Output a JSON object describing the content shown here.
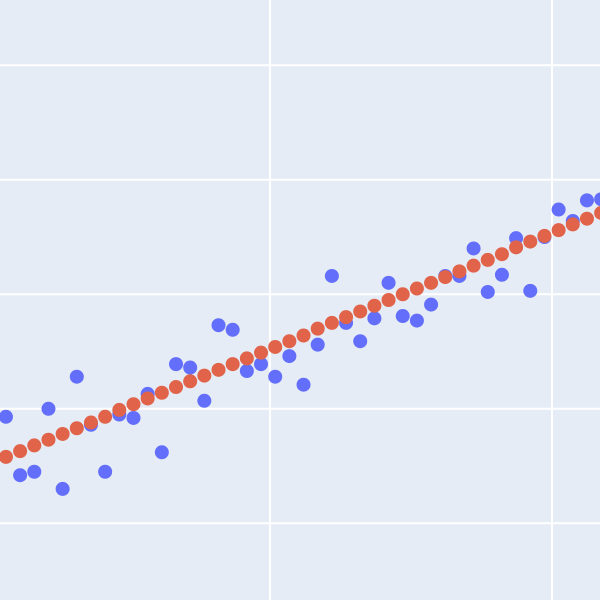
{
  "chart_data": {
    "type": "scatter",
    "x": [
      0,
      1,
      2,
      3,
      4,
      5,
      6,
      7,
      8,
      9,
      10,
      11,
      12,
      13,
      14,
      15,
      16,
      17,
      18,
      19,
      20,
      21,
      22,
      23,
      24,
      25,
      26,
      27,
      28,
      29,
      30,
      31,
      32,
      33,
      34,
      35,
      36,
      37,
      38,
      39,
      40,
      41,
      42
    ],
    "series": [
      {
        "color": "#636efa",
        "values": [
          0.93,
          0.42,
          0.45,
          1.0,
          0.3,
          1.28,
          0.86,
          0.45,
          0.95,
          0.92,
          1.13,
          0.62,
          1.39,
          1.36,
          1.07,
          1.73,
          1.69,
          1.33,
          1.39,
          1.28,
          1.46,
          1.21,
          1.56,
          2.16,
          1.75,
          1.59,
          1.79,
          2.1,
          1.81,
          1.77,
          1.91,
          2.16,
          2.16,
          2.4,
          2.02,
          2.17,
          2.49,
          2.03,
          2.5,
          2.74,
          2.64,
          2.82,
          2.83
        ]
      },
      {
        "color": "#e0634a",
        "values": [
          0.58,
          0.63,
          0.68,
          0.73,
          0.78,
          0.83,
          0.88,
          0.93,
          0.99,
          1.04,
          1.09,
          1.14,
          1.19,
          1.24,
          1.29,
          1.34,
          1.39,
          1.44,
          1.49,
          1.54,
          1.59,
          1.64,
          1.7,
          1.75,
          1.8,
          1.85,
          1.9,
          1.95,
          2.0,
          2.05,
          2.1,
          2.15,
          2.2,
          2.25,
          2.3,
          2.35,
          2.41,
          2.46,
          2.51,
          2.56,
          2.61,
          2.66,
          2.71
        ]
      }
    ],
    "xlim": [
      -0.42,
      41.92
    ],
    "xticks": [
      18.63,
      38.53
    ],
    "ylim": [
      -0.67,
      4.57
    ],
    "yticks": [
      0,
      1,
      2,
      3,
      4
    ],
    "grid": true,
    "background": "#e5ecf6"
  }
}
